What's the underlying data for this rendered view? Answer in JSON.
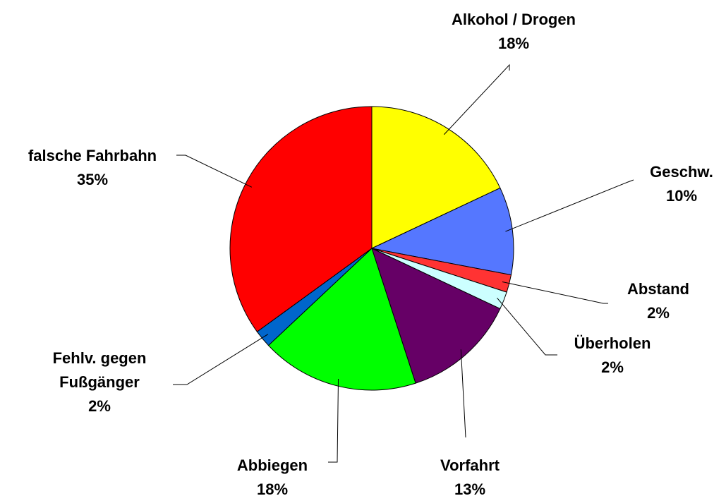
{
  "chart_data": {
    "type": "pie",
    "categories": [
      "Alkohol / Drogen",
      "Geschw.",
      "Abstand",
      "Überholen",
      "Vorfahrt",
      "Abbiegen",
      "Fehlv. gegen Fußgänger",
      "falsche Fahrbahn"
    ],
    "values": [
      18,
      10,
      2,
      2,
      13,
      18,
      2,
      35
    ],
    "value_labels": [
      "18%",
      "10%",
      "2%",
      "2%",
      "13%",
      "18%",
      "2%",
      "35%"
    ],
    "colors": [
      "#ffff00",
      "#5577ff",
      "#ff3333",
      "#ccffff",
      "#660066",
      "#00ff00",
      "#0066cc",
      "#ff0000"
    ]
  }
}
